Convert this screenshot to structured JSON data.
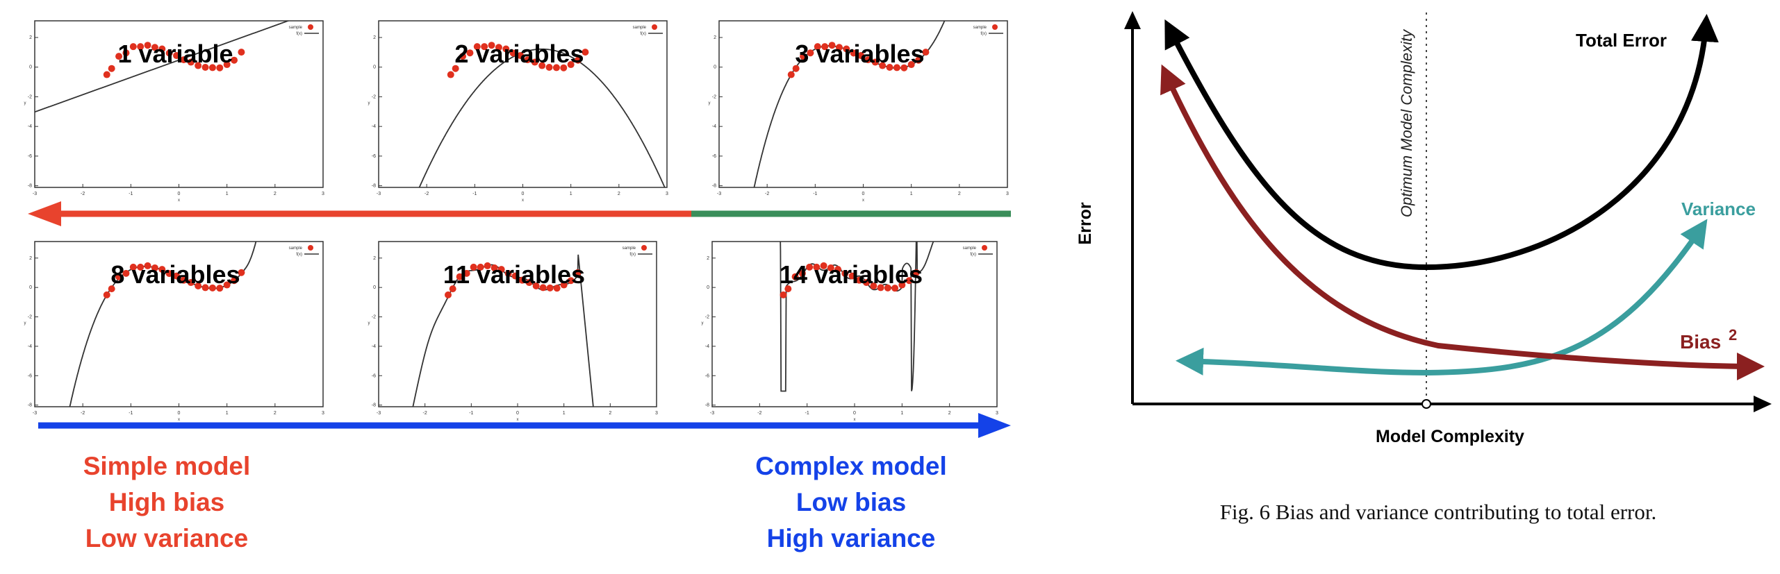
{
  "left": {
    "panels": [
      {
        "title": "1 variable"
      },
      {
        "title": "2 variables"
      },
      {
        "title": "3 variables"
      },
      {
        "title": "8 variables"
      },
      {
        "title": "11 variables"
      },
      {
        "title": "14 variables"
      }
    ],
    "legend": {
      "sample": "sample",
      "fit": "f(x)"
    },
    "x_ticks": [
      "-3",
      "-2",
      "-1",
      "0",
      "1",
      "2",
      "3"
    ],
    "y_ticks": [
      "2",
      "0",
      "-2",
      "-4",
      "-6",
      "-8"
    ],
    "x_axis_label": "x",
    "y_axis_label": "y",
    "simple_note": [
      "Simple model",
      "High bias",
      "Low variance"
    ],
    "complex_note": [
      "Complex model",
      "Low bias",
      "High variance"
    ],
    "colors": {
      "red": "#e8432d",
      "green": "#3a8e5a",
      "blue": "#1442e8",
      "dots": "#e0301e"
    }
  },
  "right": {
    "xlabel": "Model Complexity",
    "ylabel": "Error",
    "optimum_label": "Optimum Model Complexity",
    "curves": {
      "total": "Total Error",
      "variance": "Variance",
      "bias": "Bias",
      "bias_sup": "2"
    },
    "caption": "Fig. 6 Bias and variance contributing to total error.",
    "colors": {
      "total": "#000000",
      "variance": "#3a9e9e",
      "bias": "#8b2020"
    }
  }
}
